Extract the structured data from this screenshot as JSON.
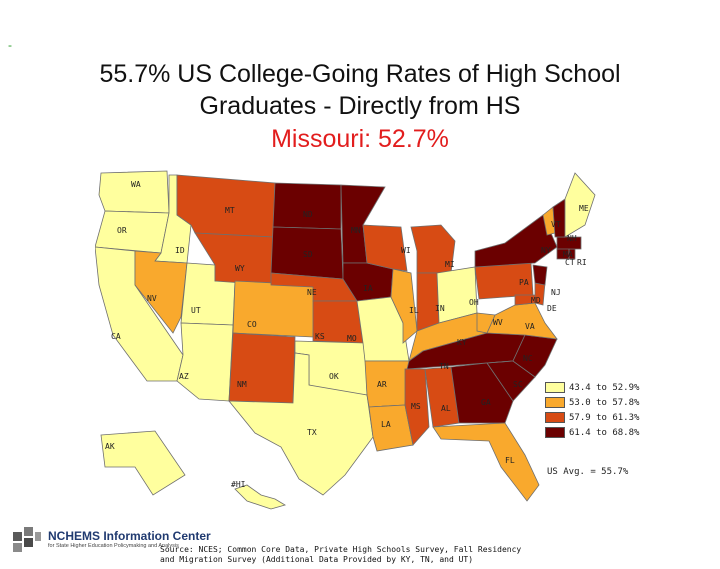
{
  "title": "55.7% US College-Going Rates of High School Graduates - Directly from HS",
  "subtitle": "Missouri: 52.7%",
  "corner_mark": "-",
  "legend": [
    {
      "label": "43.4 to 52.9%",
      "color": "#ffff9e"
    },
    {
      "label": "53.0 to 57.8%",
      "color": "#f9a92d"
    },
    {
      "label": "57.9 to 61.3%",
      "color": "#d74b14"
    },
    {
      "label": "61.4 to 68.8%",
      "color": "#6b0000"
    }
  ],
  "us_average": "US Avg. = 55.7%",
  "source": "Source: NCES; Common Core Data, Private High Schools Survey, Fall Residency and Migration Survey (Additional Data Provided by KY, TN, and UT)",
  "logo": {
    "name": "NCHEMS Information Center",
    "tagline": "for State Higher Education Policymaking and Analysis"
  },
  "map_data": {
    "states": [
      {
        "abbr": "WA",
        "class": 1
      },
      {
        "abbr": "OR",
        "class": 1
      },
      {
        "abbr": "CA",
        "class": 1
      },
      {
        "abbr": "ID",
        "class": 1
      },
      {
        "abbr": "NV",
        "class": 2
      },
      {
        "abbr": "UT",
        "class": 1
      },
      {
        "abbr": "AZ",
        "class": 1
      },
      {
        "abbr": "MT",
        "class": 3
      },
      {
        "abbr": "WY",
        "class": 3
      },
      {
        "abbr": "CO",
        "class": 2
      },
      {
        "abbr": "NM",
        "class": 3
      },
      {
        "abbr": "ND",
        "class": 4
      },
      {
        "abbr": "SD",
        "class": 4
      },
      {
        "abbr": "NE",
        "class": 3
      },
      {
        "abbr": "KS",
        "class": 3
      },
      {
        "abbr": "OK",
        "class": 1
      },
      {
        "abbr": "TX",
        "class": 1
      },
      {
        "abbr": "MN",
        "class": 4
      },
      {
        "abbr": "IA",
        "class": 4
      },
      {
        "abbr": "MO",
        "class": 1
      },
      {
        "abbr": "AR",
        "class": 2
      },
      {
        "abbr": "LA",
        "class": 2
      },
      {
        "abbr": "WI",
        "class": 3
      },
      {
        "abbr": "IL",
        "class": 2
      },
      {
        "abbr": "MI",
        "class": 3
      },
      {
        "abbr": "IN",
        "class": 3
      },
      {
        "abbr": "OH",
        "class": 1
      },
      {
        "abbr": "KY",
        "class": 2
      },
      {
        "abbr": "TN",
        "class": 4
      },
      {
        "abbr": "MS",
        "class": 3
      },
      {
        "abbr": "AL",
        "class": 3
      },
      {
        "abbr": "GA",
        "class": 4
      },
      {
        "abbr": "FL",
        "class": 2
      },
      {
        "abbr": "SC",
        "class": 4
      },
      {
        "abbr": "NC",
        "class": 4
      },
      {
        "abbr": "VA",
        "class": 2
      },
      {
        "abbr": "WV",
        "class": 2
      },
      {
        "abbr": "PA",
        "class": 3
      },
      {
        "abbr": "NY",
        "class": 4
      },
      {
        "abbr": "MD",
        "class": 3
      },
      {
        "abbr": "DE",
        "class": 3
      },
      {
        "abbr": "NJ",
        "class": 4
      },
      {
        "abbr": "CT",
        "class": 4
      },
      {
        "abbr": "RI",
        "class": 4
      },
      {
        "abbr": "MA",
        "class": 4
      },
      {
        "abbr": "VT",
        "class": 2
      },
      {
        "abbr": "NH",
        "class": 4
      },
      {
        "abbr": "ME",
        "class": 1
      },
      {
        "abbr": "AK",
        "class": 1
      },
      {
        "abbr": "HI",
        "class": 1
      }
    ]
  }
}
